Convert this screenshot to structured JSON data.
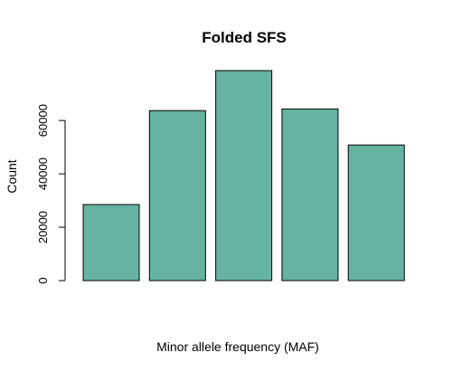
{
  "chart_data": {
    "type": "bar",
    "title": "Folded SFS",
    "xlabel": "Minor allele frequency (MAF)",
    "ylabel": "Count",
    "categories": [
      "",
      "",
      "",
      "",
      ""
    ],
    "values": [
      28500,
      63700,
      78700,
      64300,
      50800
    ],
    "ylim": [
      0,
      80000
    ],
    "yticks": [
      0,
      20000,
      40000,
      60000
    ],
    "grid": false,
    "legend": "none",
    "bar_color": "#67B3A2",
    "bar_edge_color": "#000000"
  }
}
